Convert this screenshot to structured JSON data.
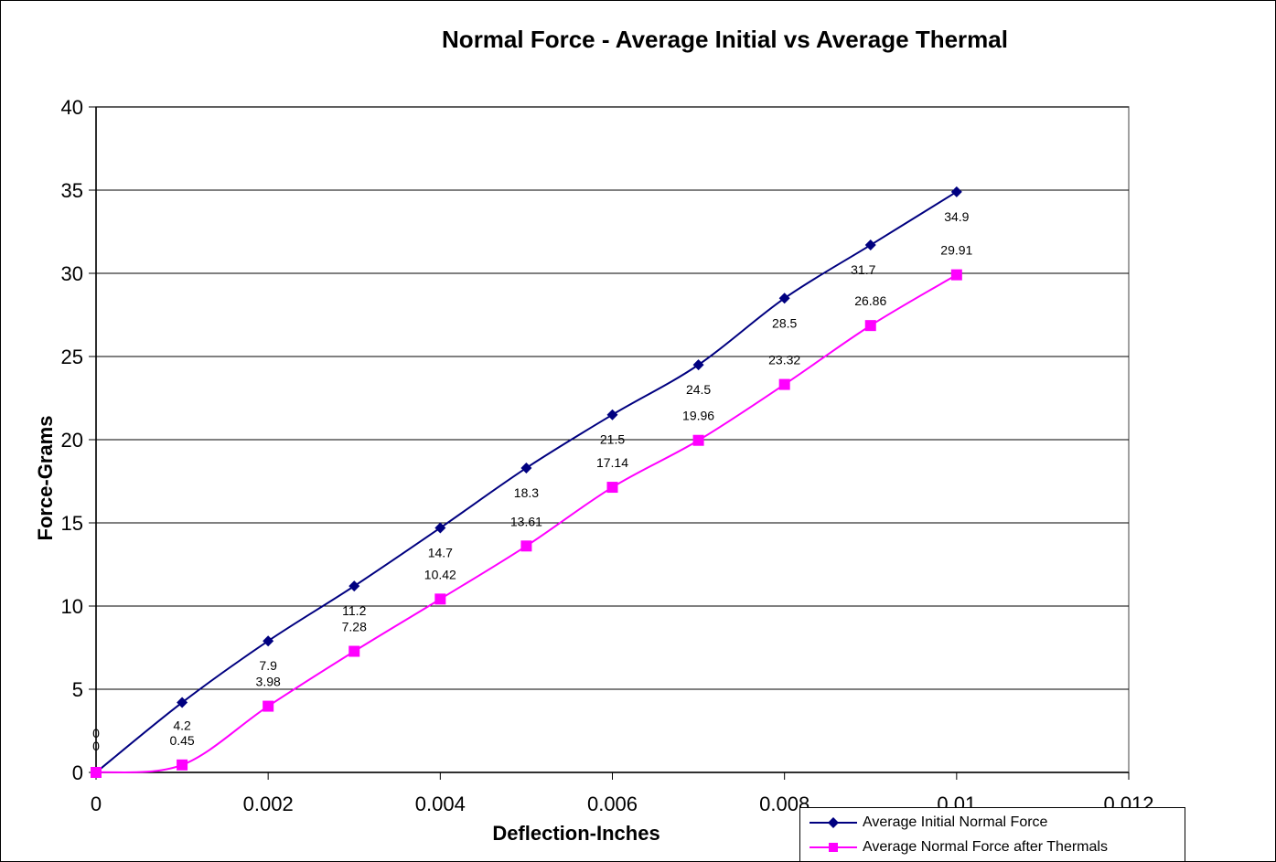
{
  "chart_data": {
    "type": "line",
    "title": "Normal Force - Average Initial vs Average Thermal",
    "xlabel": "Deflection-Inches",
    "ylabel": "Force-Grams",
    "xlim": [
      0,
      0.012
    ],
    "ylim": [
      0,
      40
    ],
    "x_ticks": [
      "0",
      "0.002",
      "0.004",
      "0.006",
      "0.008",
      "0.01",
      "0.012"
    ],
    "y_ticks": [
      "0",
      "5",
      "10",
      "15",
      "20",
      "25",
      "30",
      "35",
      "40"
    ],
    "grid": "horizontal",
    "legend_position": "bottom-right",
    "x": [
      0,
      0.001,
      0.002,
      0.003,
      0.004,
      0.005,
      0.006,
      0.007,
      0.008,
      0.009,
      0.01
    ],
    "series": [
      {
        "name": "Average Initial Normal Force",
        "color": "#000080",
        "marker": "diamond",
        "values": [
          0,
          4.2,
          7.9,
          11.2,
          14.7,
          18.3,
          21.5,
          24.5,
          28.5,
          31.7,
          34.9
        ],
        "labels": [
          "0",
          "4.2",
          "7.9",
          "11.2",
          "14.7",
          "18.3",
          "21.5",
          "24.5",
          "28.5",
          "31.7",
          "34.9"
        ]
      },
      {
        "name": "Average Normal Force after Thermals",
        "color": "#FF00FF",
        "marker": "square",
        "values": [
          0,
          0.45,
          3.98,
          7.28,
          10.42,
          13.61,
          17.14,
          19.96,
          23.32,
          26.86,
          29.91
        ],
        "labels": [
          "0",
          "0.45",
          "3.98",
          "7.28",
          "10.42",
          "13.61",
          "17.14",
          "19.96",
          "23.32",
          "26.86",
          "29.91"
        ]
      }
    ]
  }
}
